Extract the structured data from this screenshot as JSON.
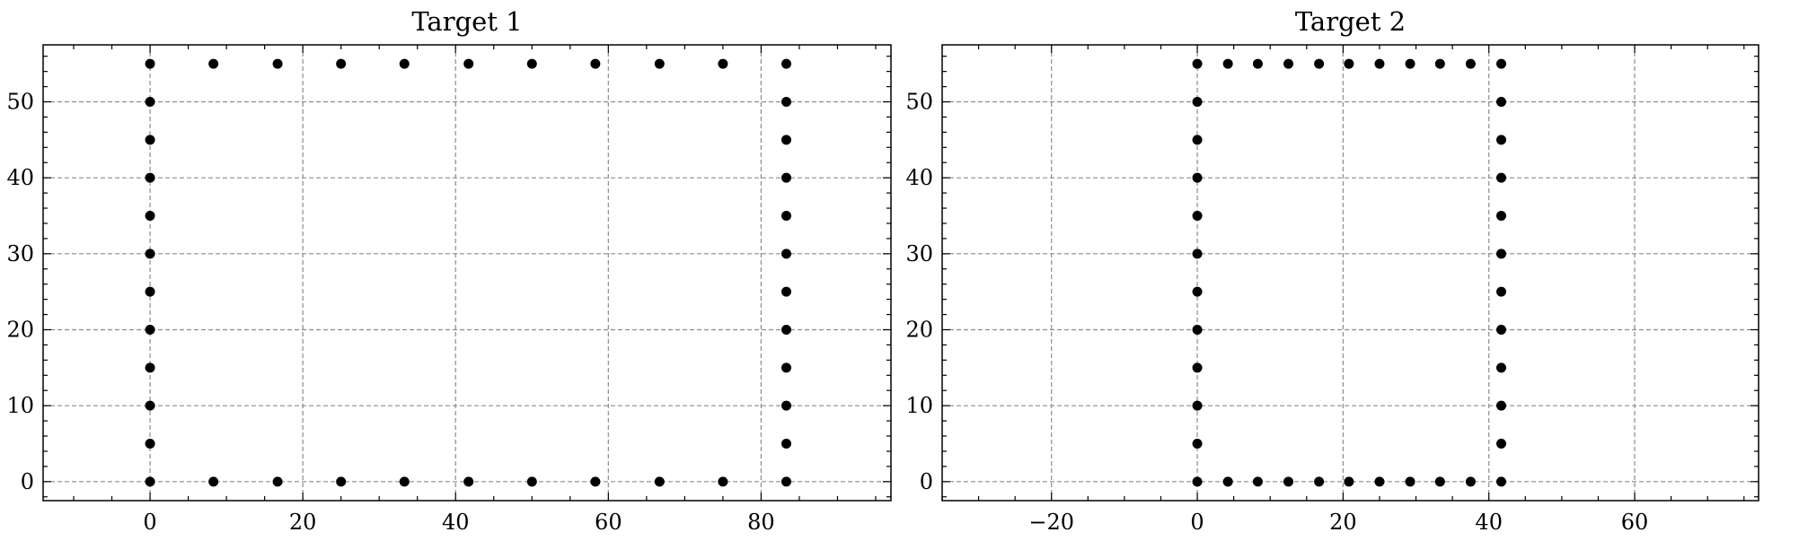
{
  "chart_data": [
    {
      "type": "scatter",
      "title": "Target 1",
      "xlabel": "",
      "ylabel": "",
      "xlim": [
        -14,
        97
      ],
      "ylim": [
        -2.5,
        57.5
      ],
      "xticks": [
        0,
        20,
        40,
        60,
        80
      ],
      "yticks": [
        0,
        10,
        20,
        30,
        40,
        50
      ],
      "xtick_labels": [
        "0",
        "20",
        "40",
        "60",
        "80"
      ],
      "ytick_labels": [
        "0",
        "10",
        "20",
        "30",
        "40",
        "50"
      ],
      "grid": true,
      "marker_color": "#000000",
      "points": [
        [
          0,
          0
        ],
        [
          0,
          5
        ],
        [
          0,
          10
        ],
        [
          0,
          15
        ],
        [
          0,
          20
        ],
        [
          0,
          25
        ],
        [
          0,
          30
        ],
        [
          0,
          35
        ],
        [
          0,
          40
        ],
        [
          0,
          45
        ],
        [
          0,
          50
        ],
        [
          0,
          55
        ],
        [
          8.3,
          55
        ],
        [
          16.7,
          55
        ],
        [
          25,
          55
        ],
        [
          33.3,
          55
        ],
        [
          41.7,
          55
        ],
        [
          50,
          55
        ],
        [
          58.3,
          55
        ],
        [
          66.7,
          55
        ],
        [
          75,
          55
        ],
        [
          83.3,
          0
        ],
        [
          83.3,
          5
        ],
        [
          83.3,
          10
        ],
        [
          83.3,
          15
        ],
        [
          83.3,
          20
        ],
        [
          83.3,
          25
        ],
        [
          83.3,
          30
        ],
        [
          83.3,
          35
        ],
        [
          83.3,
          40
        ],
        [
          83.3,
          45
        ],
        [
          83.3,
          50
        ],
        [
          83.3,
          55
        ],
        [
          8.3,
          0
        ],
        [
          16.7,
          0
        ],
        [
          25,
          0
        ],
        [
          33.3,
          0
        ],
        [
          41.7,
          0
        ],
        [
          50,
          0
        ],
        [
          58.3,
          0
        ],
        [
          66.7,
          0
        ],
        [
          75,
          0
        ]
      ]
    },
    {
      "type": "scatter",
      "title": "Target 2",
      "xlabel": "",
      "ylabel": "",
      "xlim": [
        -35,
        77
      ],
      "ylim": [
        -2.5,
        57.5
      ],
      "xticks": [
        -20,
        0,
        20,
        40,
        60
      ],
      "yticks": [
        0,
        10,
        20,
        30,
        40,
        50
      ],
      "xtick_labels": [
        "−20",
        "0",
        "20",
        "40",
        "60"
      ],
      "ytick_labels": [
        "0",
        "10",
        "20",
        "30",
        "40",
        "50"
      ],
      "grid": true,
      "marker_color": "#000000",
      "points": [
        [
          0,
          0
        ],
        [
          0,
          5
        ],
        [
          0,
          10
        ],
        [
          0,
          15
        ],
        [
          0,
          20
        ],
        [
          0,
          25
        ],
        [
          0,
          30
        ],
        [
          0,
          35
        ],
        [
          0,
          40
        ],
        [
          0,
          45
        ],
        [
          0,
          50
        ],
        [
          0,
          55
        ],
        [
          4.2,
          55
        ],
        [
          8.3,
          55
        ],
        [
          12.5,
          55
        ],
        [
          16.7,
          55
        ],
        [
          20.8,
          55
        ],
        [
          25,
          55
        ],
        [
          29.2,
          55
        ],
        [
          33.3,
          55
        ],
        [
          37.5,
          55
        ],
        [
          41.7,
          0
        ],
        [
          41.7,
          5
        ],
        [
          41.7,
          10
        ],
        [
          41.7,
          15
        ],
        [
          41.7,
          20
        ],
        [
          41.7,
          25
        ],
        [
          41.7,
          30
        ],
        [
          41.7,
          35
        ],
        [
          41.7,
          40
        ],
        [
          41.7,
          45
        ],
        [
          41.7,
          50
        ],
        [
          41.7,
          55
        ],
        [
          4.2,
          0
        ],
        [
          8.3,
          0
        ],
        [
          12.5,
          0
        ],
        [
          16.7,
          0
        ],
        [
          20.8,
          0
        ],
        [
          25,
          0
        ],
        [
          29.2,
          0
        ],
        [
          33.3,
          0
        ],
        [
          37.5,
          0
        ]
      ]
    }
  ]
}
